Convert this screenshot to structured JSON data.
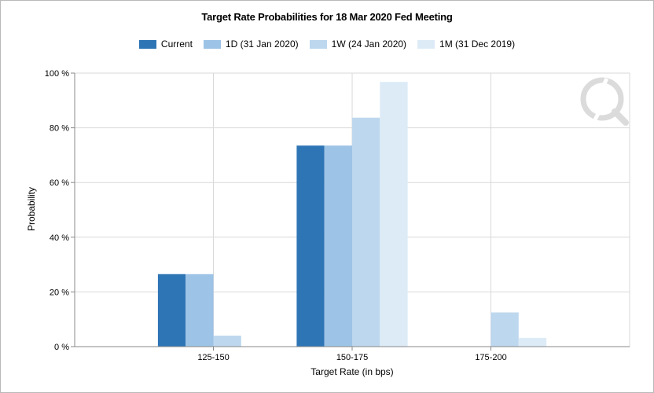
{
  "chart_data": {
    "type": "bar",
    "title": "Target Rate Probabilities for 18 Mar 2020 Fed Meeting",
    "xlabel": "Target Rate (in bps)",
    "ylabel": "Probability",
    "ylim": [
      0,
      100
    ],
    "yticks": [
      "0 %",
      "20 %",
      "40 %",
      "60 %",
      "80 %",
      "100 %"
    ],
    "categories": [
      "125-150",
      "150-175",
      "175-200"
    ],
    "series": [
      {
        "name": "Current",
        "color": "#2e75b6",
        "values": [
          26.5,
          73.5,
          0
        ]
      },
      {
        "name": "1D (31 Jan 2020)",
        "color": "#9dc3e6",
        "values": [
          26.5,
          73.5,
          0
        ]
      },
      {
        "name": "1W (24 Jan 2020)",
        "color": "#bdd7ee",
        "values": [
          4,
          83.7,
          12.5
        ]
      },
      {
        "name": "1M (31 Dec 2019)",
        "color": "#ddebf7",
        "values": [
          0,
          96.8,
          3.2
        ]
      }
    ],
    "grid": true,
    "legend_position": "top"
  }
}
